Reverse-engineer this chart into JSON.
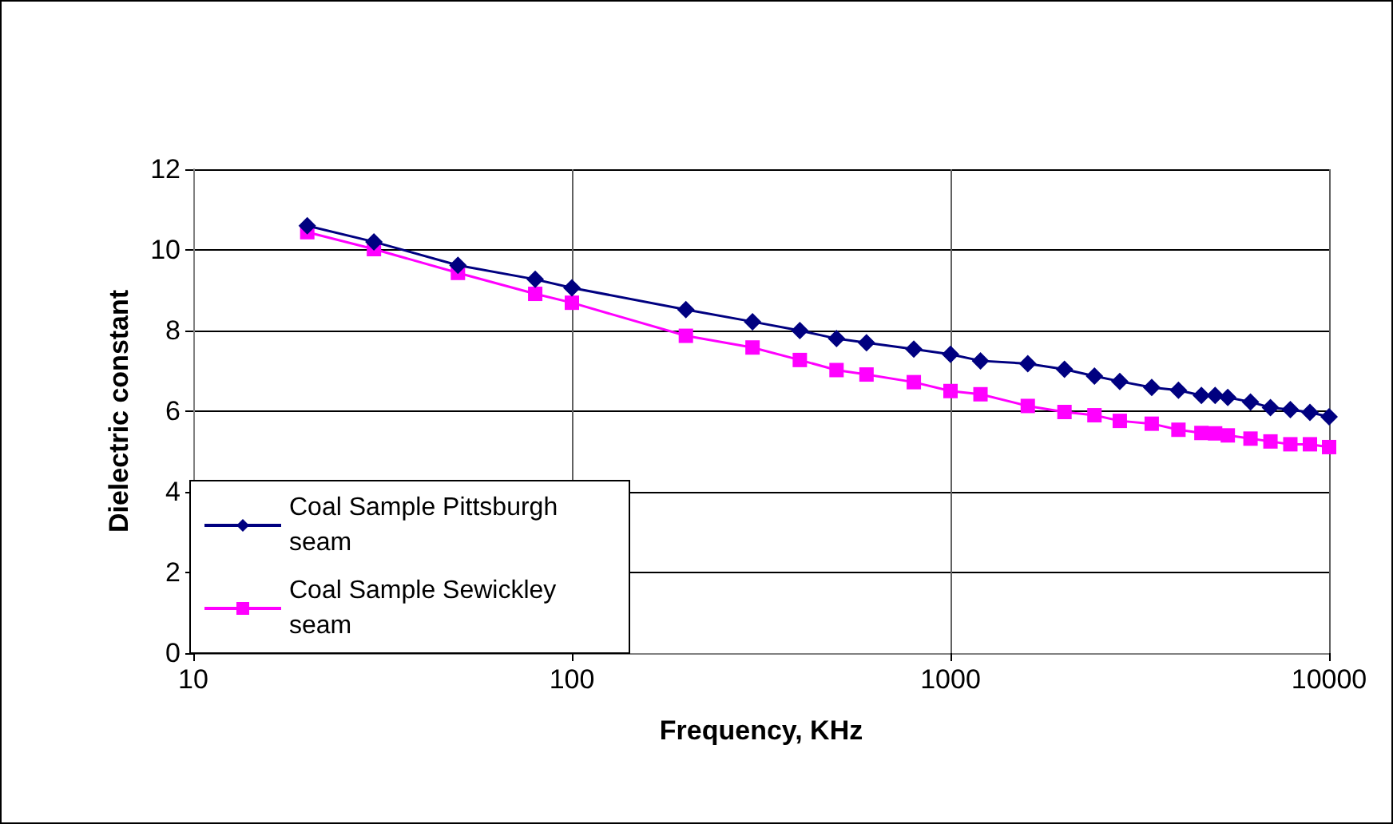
{
  "chart_data": {
    "type": "line",
    "xlabel": "Frequency, KHz",
    "ylabel": "Dielectric constant",
    "x": [
      20,
      30,
      50,
      80,
      100,
      200,
      300,
      400,
      500,
      600,
      800,
      1000,
      1200,
      1600,
      2000,
      2400,
      2800,
      3400,
      4000,
      4600,
      5000,
      5400,
      6200,
      7000,
      7900,
      8900,
      10000
    ],
    "series": [
      {
        "name": "Coal Sample Pittsburgh seam",
        "color": "#000080",
        "marker": "diamond",
        "values": [
          10.6,
          10.2,
          9.62,
          9.27,
          9.06,
          8.52,
          8.22,
          8.0,
          7.8,
          7.7,
          7.54,
          7.41,
          7.25,
          7.18,
          7.04,
          6.87,
          6.74,
          6.59,
          6.52,
          6.39,
          6.39,
          6.34,
          6.23,
          6.09,
          6.04,
          5.97,
          5.86
        ]
      },
      {
        "name": "Coal Sample Sewickley seam",
        "color": "#ff00ff",
        "marker": "square",
        "values": [
          10.44,
          10.02,
          9.43,
          8.91,
          8.69,
          7.87,
          7.58,
          7.27,
          7.02,
          6.91,
          6.72,
          6.5,
          6.42,
          6.13,
          5.98,
          5.9,
          5.76,
          5.69,
          5.54,
          5.46,
          5.45,
          5.4,
          5.32,
          5.25,
          5.18,
          5.18,
          5.11
        ]
      }
    ],
    "log": "x",
    "xlim": [
      10,
      10000
    ],
    "xticks": [
      10,
      100,
      1000,
      10000
    ],
    "ylim": [
      0,
      12
    ],
    "yticks": [
      0,
      2,
      4,
      6,
      8,
      10,
      12
    ],
    "grid": true,
    "legend": "bottom left",
    "line_style": "solid"
  }
}
